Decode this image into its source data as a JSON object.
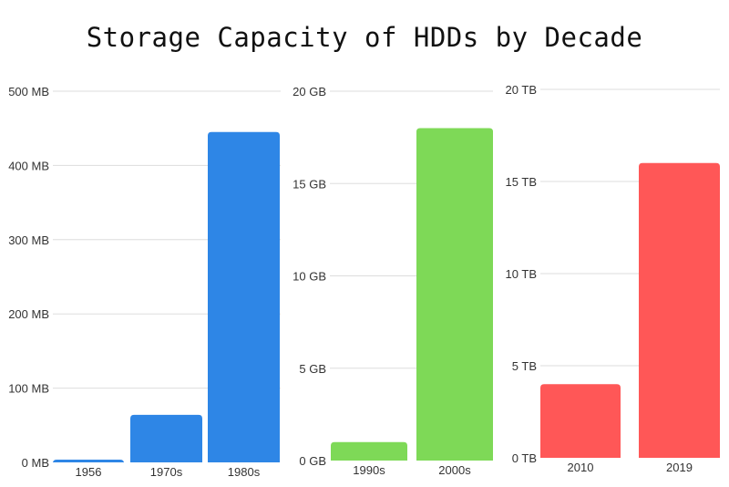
{
  "chart_data": [
    {
      "type": "bar",
      "title": "Storage Capacity of HDDs by Decade",
      "categories": [
        "1956",
        "1970s",
        "1980s"
      ],
      "values": [
        3.75,
        64,
        445
      ],
      "unit": "MB",
      "ylim": [
        0,
        500
      ],
      "yticks": [
        0,
        100,
        200,
        300,
        400,
        500
      ],
      "ytick_labels": [
        "0 MB",
        "100 MB",
        "200 MB",
        "300 MB",
        "400 MB",
        "500 MB"
      ],
      "color": "#2e86e6",
      "grid": true
    },
    {
      "type": "bar",
      "categories": [
        "1990s",
        "2000s"
      ],
      "values": [
        1,
        18
      ],
      "unit": "GB",
      "ylim": [
        0,
        20
      ],
      "yticks": [
        0,
        5,
        10,
        15,
        20
      ],
      "ytick_labels": [
        "0 GB",
        "5 GB",
        "10 GB",
        "15 GB",
        "20 GB"
      ],
      "color": "#7ed957",
      "grid": true
    },
    {
      "type": "bar",
      "categories": [
        "2010",
        "2019"
      ],
      "values": [
        4,
        16
      ],
      "unit": "TB",
      "ylim": [
        0,
        20
      ],
      "yticks": [
        0,
        5,
        10,
        15,
        20
      ],
      "ytick_labels": [
        "0 TB",
        "5 TB",
        "10 TB",
        "15 TB",
        "20 TB"
      ],
      "color": "#ff5757",
      "grid": true
    }
  ]
}
